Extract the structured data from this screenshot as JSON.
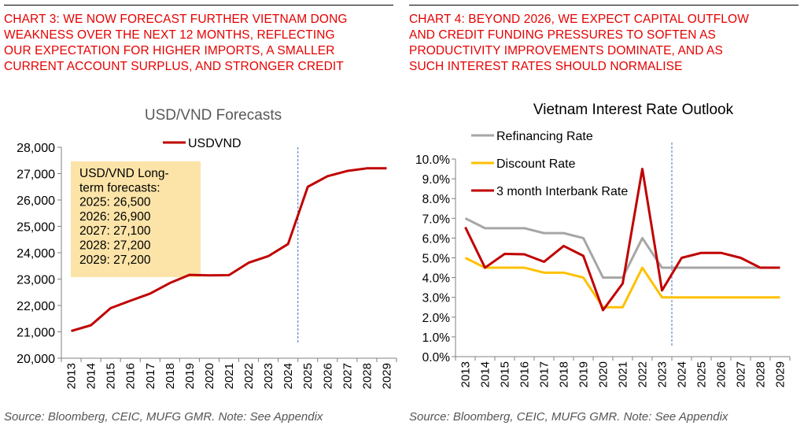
{
  "colors": {
    "heading": "#e60000",
    "rule": "#000000",
    "usdvnd_line": "#c00000",
    "refinancing": "#a6a6a6",
    "discount": "#ffc000",
    "interbank": "#c00000",
    "callout_fill": "#fce4a8",
    "divider": "#4472c4",
    "axis": "#808080",
    "source": "#555555"
  },
  "left": {
    "heading_lines": [
      "CHART 3: WE NOW FORECAST FURTHER VIETNAM DONG",
      "WEAKNESS OVER THE NEXT 12 MONTHS, REFLECTING",
      "OUR EXPECTATION FOR HIGHER IMPORTS, A SMALLER",
      "CURRENT ACCOUNT SURPLUS, AND STRONGER CREDIT"
    ],
    "source": "Source: Bloomberg, CEIC, MUFG GMR. Note: See Appendix",
    "callout_lines": [
      "USD/VND Long-",
      "term forecasts:",
      "2025: 26,500",
      "2026: 26,900",
      "2027: 27,100",
      "2028: 27,200",
      "2029: 27,200"
    ]
  },
  "right": {
    "heading_lines": [
      "CHART 4: BEYOND 2026, WE EXPECT CAPITAL OUTFLOW",
      "AND CREDIT FUNDING PRESSURES TO SOFTEN AS",
      "PRODUCTIVITY IMPROVEMENTS DOMINATE, AND AS",
      "SUCH INTEREST RATES SHOULD NORMALISE"
    ],
    "source": "Source: Bloomberg, CEIC, MUFG GMR. Note: See Appendix"
  },
  "chart_data": [
    {
      "type": "line",
      "title": "USD/VND Forecasts",
      "xlabel": "",
      "ylabel": "",
      "x": [
        2013,
        2014,
        2015,
        2016,
        2017,
        2018,
        2019,
        2020,
        2021,
        2022,
        2023,
        2024,
        2025,
        2026,
        2027,
        2028,
        2029
      ],
      "x_ticks": [
        "2013",
        "2014",
        "2015",
        "2016",
        "2017",
        "2018",
        "2019",
        "2020",
        "2021",
        "2022",
        "2023",
        "2024",
        "2025",
        "2026",
        "2027",
        "2028",
        "2029"
      ],
      "series": [
        {
          "name": "USDVND",
          "x": [
            2013,
            2014,
            2015,
            2016,
            2017,
            2018,
            2019,
            2020,
            2021,
            2022,
            2023,
            2024,
            2025,
            2026,
            2027,
            2028,
            2029
          ],
          "values": [
            21030,
            21250,
            21900,
            22180,
            22450,
            22850,
            23160,
            23140,
            23150,
            23620,
            23870,
            24330,
            26500,
            26900,
            27100,
            27200,
            27200
          ]
        }
      ],
      "ylim": [
        20000,
        28000
      ],
      "y_ticks": [
        "20,000",
        "21,000",
        "22,000",
        "23,000",
        "24,000",
        "25,000",
        "26,000",
        "27,000",
        "28,000"
      ],
      "forecast_divider_x": 2024.5,
      "legend": "top-center",
      "grid": false
    },
    {
      "type": "line",
      "title": "Vietnam Interest Rate Outlook",
      "xlabel": "",
      "ylabel": "",
      "x": [
        2013,
        2014,
        2015,
        2016,
        2017,
        2018,
        2019,
        2020,
        2021,
        2022,
        2023,
        2024,
        2025,
        2026,
        2027,
        2028,
        2029
      ],
      "x_ticks": [
        "2013",
        "2014",
        "2015",
        "2016",
        "2017",
        "2018",
        "2019",
        "2020",
        "2021",
        "2022",
        "2023",
        "2024",
        "2025",
        "2026",
        "2027",
        "2028",
        "2029"
      ],
      "series": [
        {
          "name": "Refinancing Rate",
          "values": [
            7.0,
            6.5,
            6.5,
            6.5,
            6.25,
            6.25,
            6.0,
            4.0,
            4.0,
            6.0,
            4.5,
            4.5,
            4.5,
            4.5,
            4.5,
            4.5,
            4.5
          ]
        },
        {
          "name": "Discount Rate",
          "values": [
            5.0,
            4.5,
            4.5,
            4.5,
            4.25,
            4.25,
            4.0,
            2.5,
            2.5,
            4.5,
            3.0,
            3.0,
            3.0,
            3.0,
            3.0,
            3.0,
            3.0
          ]
        },
        {
          "name": "3 month Interbank Rate",
          "values": [
            6.55,
            4.5,
            5.2,
            5.18,
            4.8,
            5.6,
            5.1,
            2.35,
            3.7,
            9.5,
            3.35,
            5.0,
            5.25,
            5.25,
            5.0,
            4.5,
            4.5
          ]
        }
      ],
      "ylim": [
        0,
        10
      ],
      "y_ticks": [
        "0.0%",
        "1.0%",
        "2.0%",
        "3.0%",
        "4.0%",
        "5.0%",
        "6.0%",
        "7.0%",
        "8.0%",
        "9.0%",
        "10.0%"
      ],
      "forecast_divider_x": 2023.5,
      "legend": "top-left",
      "grid": false
    }
  ]
}
